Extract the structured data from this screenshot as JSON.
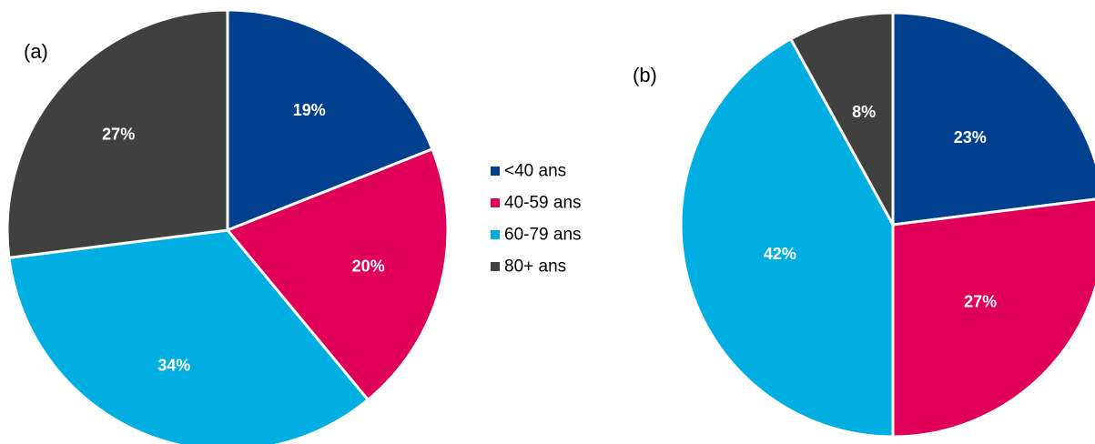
{
  "chart_data": [
    {
      "type": "pie",
      "panel_label": "(a)",
      "categories": [
        "<40 ans",
        "40-59 ans",
        "60-79 ans",
        "80+ ans"
      ],
      "values": [
        19,
        20,
        34,
        27
      ],
      "labels": [
        "19%",
        "20%",
        "34%",
        "27%"
      ],
      "colors": [
        "#00408f",
        "#e0005a",
        "#00aee2",
        "#404040"
      ]
    },
    {
      "type": "pie",
      "panel_label": "(b)",
      "categories": [
        "<40 ans",
        "40-59 ans",
        "60-79 ans",
        "80+ ans"
      ],
      "values": [
        23,
        27,
        42,
        8
      ],
      "labels": [
        "23%",
        "27%",
        "42%",
        "8%"
      ],
      "colors": [
        "#00408f",
        "#e0005a",
        "#00aee2",
        "#404040"
      ]
    }
  ],
  "legend": {
    "placement": "between-charts",
    "items": [
      {
        "label": "<40 ans",
        "color": "#00408f"
      },
      {
        "label": "40-59 ans",
        "color": "#e0005a"
      },
      {
        "label": "60-79 ans",
        "color": "#00aee2"
      },
      {
        "label": "80+ ans",
        "color": "#404040"
      }
    ]
  }
}
